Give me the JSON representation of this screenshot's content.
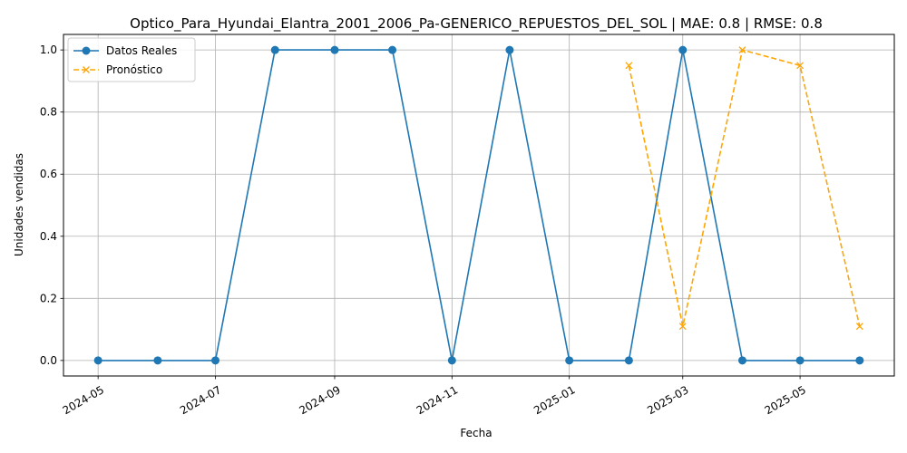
{
  "chart_data": {
    "type": "line",
    "title": "Optico_Para_Hyundai_Elantra_2001_2006_Pa-GENERICO_REPUESTOS_DEL_SOL | MAE: 0.8 | RMSE: 0.8",
    "xlabel": "Fecha",
    "ylabel": "Unidades vendidas",
    "xlim": [
      "2024-04-13",
      "2025-06-19"
    ],
    "ylim": [
      -0.05,
      1.05
    ],
    "x_ticks": [
      "2024-05",
      "2024-07",
      "2024-09",
      "2024-11",
      "2025-01",
      "2025-03",
      "2025-05"
    ],
    "y_ticks": [
      "0.0",
      "0.2",
      "0.4",
      "0.6",
      "0.8",
      "1.0"
    ],
    "grid": true,
    "legend_position": "top-left",
    "series": [
      {
        "name": "Datos Reales",
        "color": "#1f77b4",
        "marker": "circle",
        "line_style": "solid",
        "x": [
          "2024-05-01",
          "2024-06-01",
          "2024-07-01",
          "2024-08-01",
          "2024-09-01",
          "2024-10-01",
          "2024-11-01",
          "2024-12-01",
          "2025-01-01",
          "2025-02-01",
          "2025-03-01",
          "2025-04-01",
          "2025-05-01",
          "2025-06-01"
        ],
        "values": [
          0,
          0,
          0,
          1,
          1,
          1,
          0,
          1,
          0,
          0,
          1,
          0,
          0,
          0
        ]
      },
      {
        "name": "Pronóstico",
        "color": "#ffa500",
        "marker": "x",
        "line_style": "dashed",
        "x": [
          "2025-02-01",
          "2025-03-01",
          "2025-04-01",
          "2025-05-01",
          "2025-06-01"
        ],
        "values": [
          0.95,
          0.11,
          1.0,
          0.95,
          0.11
        ]
      }
    ]
  }
}
